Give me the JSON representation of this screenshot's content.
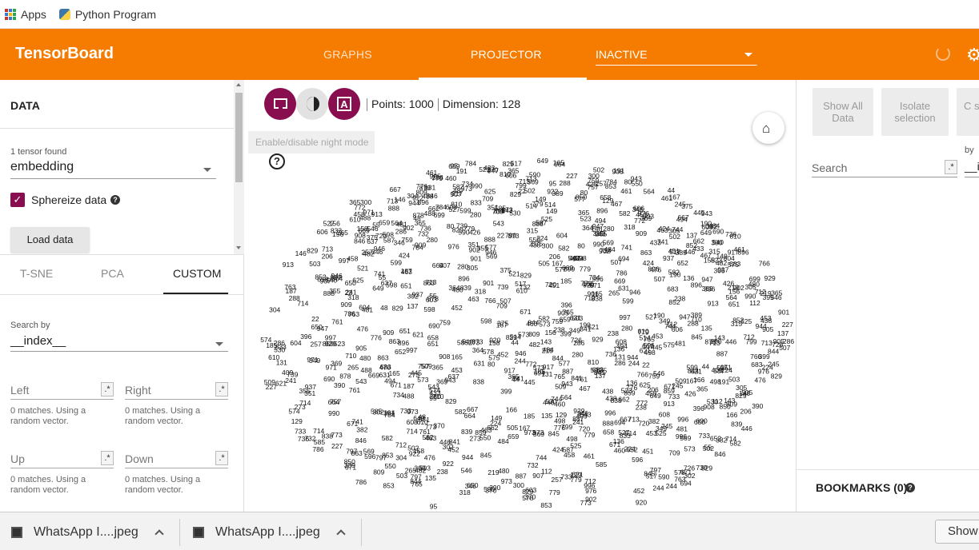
{
  "browser": {
    "bookmarks": [
      {
        "label": "Apps",
        "icon": "apps-grid-icon"
      },
      {
        "label": "Python Program",
        "icon": "python-icon"
      }
    ]
  },
  "header": {
    "brand": "TensorBoard",
    "tabs": [
      "GRAPHS",
      "PROJECTOR"
    ],
    "active_tab": "PROJECTOR",
    "run_select": "INACTIVE",
    "accent_color": "#f57c00"
  },
  "left": {
    "data_heading": "DATA",
    "tensor_count": "1 tensor found",
    "tensor_value": "embedding",
    "sphereize_label": "Sphereize data",
    "sphereize_checked": true,
    "load_button": "Load data",
    "projection_tabs": [
      "T-SNE",
      "PCA",
      "CUSTOM"
    ],
    "active_projection": "CUSTOM",
    "search_by_label": "Search by",
    "search_by_value": "__index__",
    "directions": [
      {
        "placeholder": "Left",
        "note": "0 matches. Using a random vector."
      },
      {
        "placeholder": "Right",
        "note": "0 matches. Using a random vector."
      },
      {
        "placeholder": "Up",
        "note": "0 matches. Using a random vector."
      },
      {
        "placeholder": "Down",
        "note": "0 matches. Using a random vector."
      }
    ],
    "regex_symbol": ".*"
  },
  "center": {
    "points_text": "Points: 1000",
    "dimension_text": "Dimension: 128",
    "tooltip": "Enable/disable night mode",
    "help_symbol": "?"
  },
  "right": {
    "show_all": "Show All Data",
    "isolate": "Isolate selection",
    "clear": "C se",
    "by_label": "by",
    "by_value": "__i",
    "search_placeholder": "Search",
    "regex_symbol": ".*",
    "bookmarks": "BOOKMARKS (0)"
  },
  "downloads": {
    "items": [
      "WhatsApp I....jpeg",
      "WhatsApp I....jpeg"
    ],
    "show_all": "Show"
  },
  "scatter_labels": [
    "905",
    "224",
    "585",
    "844",
    "514",
    "784",
    "944",
    "569",
    "507",
    "80",
    "683",
    "525",
    "305",
    "286",
    "461",
    "649",
    "902",
    "888",
    "671",
    "369",
    "947",
    "759",
    "22",
    "573",
    "503",
    "610",
    "667",
    "621",
    "488",
    "714",
    "476",
    "863",
    "582",
    "463",
    "346",
    "396",
    "238",
    "946",
    "598",
    "446",
    "300",
    "502",
    "733",
    "943",
    "765",
    "480",
    "690",
    "302",
    "382",
    "484",
    "438",
    "445",
    "482",
    "713",
    "530",
    "901",
    "669",
    "389",
    "349",
    "726",
    "772",
    "245",
    "351",
    "907",
    "505",
    "129",
    "146",
    "917",
    "873",
    "846",
    "709",
    "659",
    "603",
    "137",
    "587",
    "578",
    "424",
    "744",
    "517",
    "304",
    "799",
    "543",
    "498",
    "227",
    "458",
    "599",
    "839",
    "859",
    "664",
    "997",
    "757",
    "736",
    "241",
    "315",
    "671",
    "546",
    "976",
    "662",
    "280",
    "166",
    "550",
    "158",
    "399",
    "149",
    "521",
    "131",
    "135",
    "219",
    "606",
    "460",
    "996",
    "732",
    "845",
    "922",
    "364",
    "766",
    "908",
    "244",
    "658",
    "779",
    "509",
    "390",
    "318",
    "929",
    "734",
    "143",
    "453",
    "920",
    "288",
    "273",
    "112",
    "365",
    "582",
    "523",
    "852",
    "878",
    "370",
    "44",
    "761",
    "365",
    "838",
    "853",
    "973",
    "990",
    "776",
    "720",
    "604",
    "55",
    "763",
    "741",
    "786",
    "829",
    "574",
    "937",
    "540",
    "265",
    "710",
    "95",
    "608",
    "575",
    "779",
    "409",
    "156",
    "564",
    "187",
    "896",
    "829",
    "797",
    "913",
    "206",
    "48",
    "452",
    "191",
    "257",
    "167",
    "637",
    "467",
    "631",
    "590",
    "850",
    "451",
    "136",
    "355",
    "494",
    "433",
    "596",
    "375",
    "829",
    "841",
    "625",
    "699",
    "190",
    "185",
    "971",
    "694",
    "652",
    "280",
    "650",
    "739",
    "896",
    "426",
    "527",
    "165",
    "833",
    "577",
    "809",
    "909",
    "481",
    "651",
    "810",
    "773",
    "712",
    "887",
    "713"
  ]
}
